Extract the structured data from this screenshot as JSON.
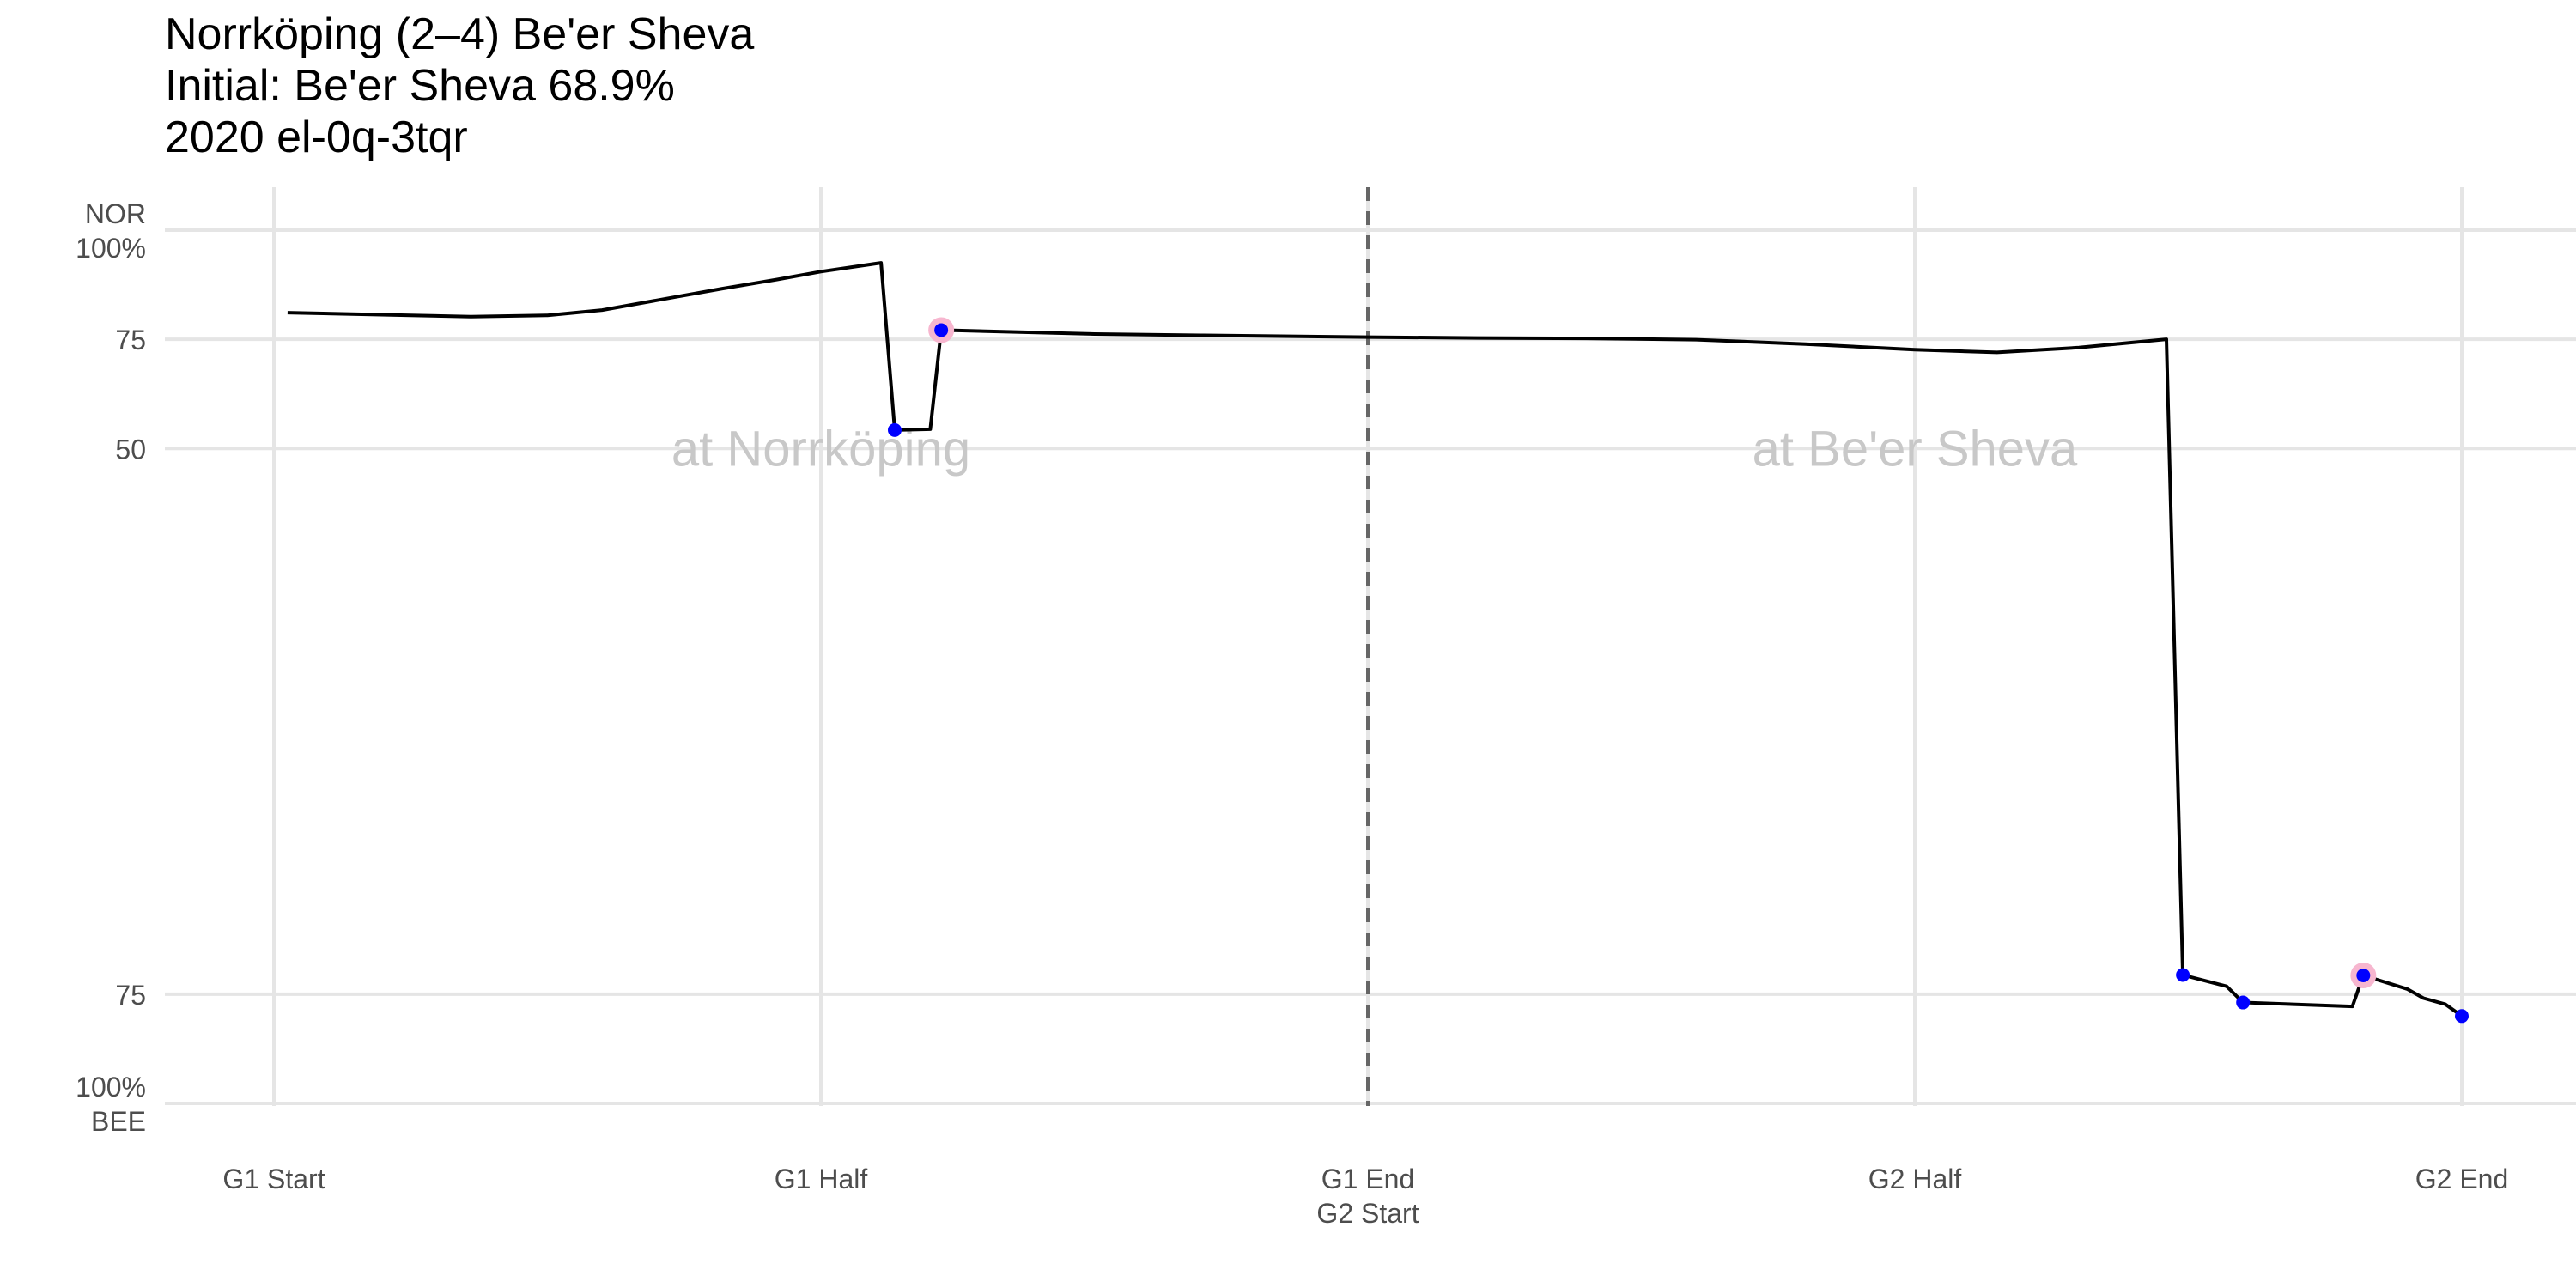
{
  "titles": {
    "line1": "Norrköping (2–4) Be'er Sheva",
    "line2": "Initial: Be'er Sheva 68.9%",
    "line3": "2020 el-0q-3tqr"
  },
  "chart_data": {
    "type": "line",
    "title": "Norrköping (2–4) Be'er Sheva",
    "subtitle": [
      "Initial: Be'er Sheva 68.9%",
      "2020 el-0q-3tqr"
    ],
    "x_ticks": [
      {
        "pos": 0,
        "label": "G1 Start"
      },
      {
        "pos": 1,
        "label": "G1 Half"
      },
      {
        "pos": 2,
        "label": "G1 End",
        "label2": "G2 Start"
      },
      {
        "pos": 3,
        "label": "G2 Half"
      },
      {
        "pos": 4,
        "label": "G2 End"
      }
    ],
    "xlim": [
      0,
      4
    ],
    "y_ticks": [
      {
        "value": 100,
        "label": "NOR",
        "label2": "100%"
      },
      {
        "value": 75,
        "label": "75"
      },
      {
        "value": 50,
        "label": "50"
      },
      {
        "value": -75,
        "label": "75"
      },
      {
        "value": -100,
        "label": "100%",
        "label2": "BEE"
      }
    ],
    "ylim": [
      -100,
      100
    ],
    "divider_x": 2,
    "annotations": [
      {
        "text": "at Norrköping",
        "x": 1,
        "y": 50
      },
      {
        "text": "at Be'er Sheva",
        "x": 3,
        "y": 50
      }
    ],
    "series": [
      {
        "points": [
          [
            0.025,
            81.1
          ],
          [
            0.25,
            80.5
          ],
          [
            0.36,
            80.2
          ],
          [
            0.5,
            80.5
          ],
          [
            0.6,
            81.7
          ],
          [
            0.73,
            84.6
          ],
          [
            0.82,
            86.6
          ],
          [
            0.92,
            88.7
          ],
          [
            1.0,
            90.5
          ],
          [
            1.11,
            92.5
          ],
          [
            1.135,
            54.2
          ],
          [
            1.2,
            54.4
          ],
          [
            1.22,
            77.1
          ],
          [
            1.5,
            76.2
          ],
          [
            1.7,
            75.9
          ],
          [
            2.0,
            75.5
          ],
          [
            2.2,
            75.3
          ],
          [
            2.4,
            75.2
          ],
          [
            2.6,
            74.9
          ],
          [
            2.8,
            73.9
          ],
          [
            3.0,
            72.6
          ],
          [
            3.15,
            72.0
          ],
          [
            3.3,
            73.1
          ],
          [
            3.46,
            75.0
          ],
          [
            3.49,
            -70.6
          ],
          [
            3.57,
            -73.2
          ],
          [
            3.6,
            -76.9
          ],
          [
            3.8,
            -77.8
          ],
          [
            3.82,
            -70.7
          ],
          [
            3.9,
            -73.8
          ],
          [
            3.93,
            -75.9
          ],
          [
            3.97,
            -77.3
          ],
          [
            4.0,
            -80.0
          ]
        ]
      }
    ],
    "events": [
      {
        "x": 1.135,
        "y": 54.2,
        "highlight": false
      },
      {
        "x": 1.22,
        "y": 77.1,
        "highlight": true
      },
      {
        "x": 3.49,
        "y": -70.6,
        "highlight": false
      },
      {
        "x": 3.6,
        "y": -76.9,
        "highlight": false
      },
      {
        "x": 3.82,
        "y": -70.7,
        "highlight": true
      },
      {
        "x": 4.0,
        "y": -80.0,
        "highlight": false
      }
    ],
    "colors": {
      "line": "#000000",
      "event_dot": "#0000ff",
      "event_highlight": "#f7b6cf",
      "grid": "#e5e5e5",
      "divider": "#666666",
      "watermark": "#c8c8c8"
    },
    "grid": true
  }
}
